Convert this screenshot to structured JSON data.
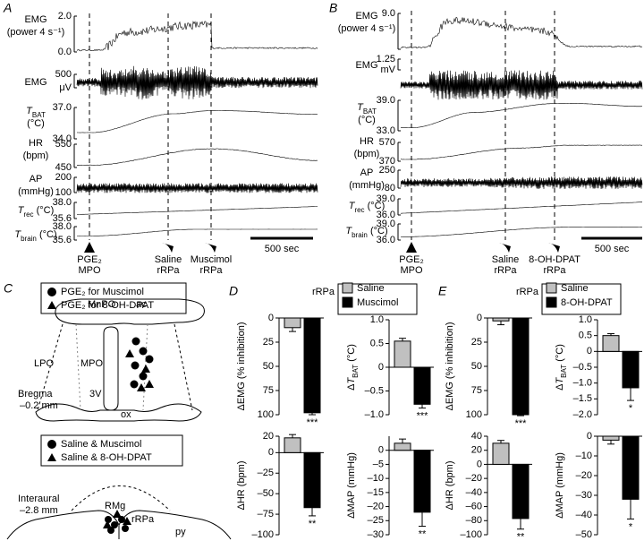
{
  "panel_a": {
    "label": "A",
    "rows": [
      {
        "name": [
          "EMG",
          "(power 4 s⁻¹)"
        ],
        "scale": [
          "2.0",
          "0.0"
        ]
      },
      {
        "name": [
          "EMG"
        ],
        "scale": [
          "500",
          "μV"
        ]
      },
      {
        "name": [
          {
            "sym": "T",
            "sub": "BAT"
          },
          "(°C)"
        ],
        "scale": [
          "37.0",
          "34.0"
        ]
      },
      {
        "name": [
          "HR",
          "(bpm)"
        ],
        "scale": [
          "550",
          "450"
        ]
      },
      {
        "name": [
          "AP",
          "(mmHg)"
        ],
        "scale": [
          "200",
          "100"
        ]
      },
      {
        "name": [
          {
            "sym": "T",
            "sub": "rec",
            "post": " (°C)"
          }
        ],
        "scale": [
          "38.0",
          "35.6"
        ]
      },
      {
        "name": [
          {
            "sym": "T",
            "sub": "brain",
            "post": " (°C)"
          }
        ],
        "scale": [
          "38.0",
          "35.6"
        ]
      }
    ],
    "events": [
      [
        "PGE₂",
        "MPO"
      ],
      [
        "Saline",
        "rRPa"
      ],
      [
        "Muscimol",
        "rRPa"
      ]
    ],
    "scale_bar": "500 sec"
  },
  "panel_b": {
    "label": "B",
    "rows": [
      {
        "name": [
          "EMG",
          "(power 4 s⁻¹)"
        ],
        "scale": [
          "9.0"
        ]
      },
      {
        "name": [
          "EMG"
        ],
        "scale": [
          "1.25",
          "mV"
        ]
      },
      {
        "name": [
          {
            "sym": "T",
            "sub": "BAT"
          },
          "(°C)"
        ],
        "scale": [
          "39.0",
          "33.0"
        ]
      },
      {
        "name": [
          "HR",
          "(bpm)"
        ],
        "scale": [
          "570",
          "370"
        ]
      },
      {
        "name": [
          "AP",
          "(mmHg)"
        ],
        "scale": [
          "250",
          "80"
        ]
      },
      {
        "name": [
          {
            "sym": "T",
            "sub": "rec",
            "post": " (°C)"
          }
        ],
        "scale": [
          "39.0",
          "36.0"
        ]
      },
      {
        "name": [
          {
            "sym": "T",
            "sub": "brain",
            "post": " (°C)"
          }
        ],
        "scale": [
          "39.0",
          "36.0"
        ]
      }
    ],
    "events": [
      [
        "PGE₂",
        "MPO"
      ],
      [
        "Saline",
        "rRPa"
      ],
      [
        "8-OH-DPAT",
        "rRPa"
      ]
    ],
    "scale_bar": "500 sec"
  },
  "panel_c": {
    "label": "C",
    "legend_top": [
      "PGE₂ for Muscimol",
      "PGE₂ for 8-OH-DPAT"
    ],
    "section_top": {
      "labels": [
        "MnPO",
        "ac",
        "LPO",
        "MPO",
        "3V",
        "ox"
      ],
      "level": [
        "Bregma",
        "–0.2 mm"
      ]
    },
    "legend_bottom": [
      "Saline & Muscimol",
      "Saline & 8-OH-DPAT"
    ],
    "section_bottom": {
      "labels": [
        "RMg",
        "rRPa",
        "py"
      ],
      "level": [
        "Interaural",
        "–2.8 mm"
      ]
    }
  },
  "chart_data": [
    {
      "type": "bar",
      "label": "D",
      "legend_title": "rRPa",
      "series": [
        {
          "name": "Saline",
          "color": "#c0c0c0"
        },
        {
          "name": "Muscimol",
          "color": "#000000"
        }
      ],
      "subplots": [
        {
          "ylabel": "ΔEMG (% inhibition)",
          "values": [
            10,
            98
          ],
          "errors": [
            4,
            2
          ],
          "ylim": [
            100,
            0
          ],
          "yticks": [
            0,
            25,
            50,
            75,
            100
          ],
          "significance": "***"
        },
        {
          "ylabel": {
            "pre": "Δ",
            "sym": "T",
            "sub": "BAT",
            "post": " (°C)"
          },
          "values": [
            0.55,
            -0.78
          ],
          "errors": [
            0.06,
            0.08
          ],
          "ylim": [
            -1,
            1
          ],
          "yticks": [
            {
              "value": 1,
              "label": "1.0"
            },
            {
              "value": 0.5,
              "label": "0.5"
            },
            0,
            {
              "value": -0.5,
              "label": "–0.5"
            },
            {
              "value": -1,
              "label": "–1.0"
            }
          ],
          "significance": "***"
        },
        {
          "ylabel": "ΔHR (bpm)",
          "values": [
            18,
            -67
          ],
          "errors": [
            4,
            10
          ],
          "ylim": [
            -100,
            20
          ],
          "yticks": [
            20,
            0,
            {
              "value": -25,
              "label": "–25"
            },
            {
              "value": -50,
              "label": "–50"
            },
            {
              "value": -75,
              "label": "–75"
            },
            {
              "value": -100,
              "label": "–100"
            }
          ],
          "significance": "**"
        },
        {
          "ylabel": "ΔMAP (mmHg)",
          "values": [
            2.5,
            -22
          ],
          "errors": [
            1.5,
            5
          ],
          "ylim": [
            -30,
            5
          ],
          "yticks": [
            0,
            {
              "value": -5,
              "label": "–5"
            },
            {
              "value": -10,
              "label": "–10"
            },
            {
              "value": -15,
              "label": "–15"
            },
            {
              "value": -20,
              "label": "–20"
            },
            {
              "value": -25,
              "label": "–25"
            },
            {
              "value": -30,
              "label": "–30"
            }
          ],
          "significance": "**"
        }
      ]
    },
    {
      "type": "bar",
      "label": "E",
      "legend_title": "rRPa",
      "series": [
        {
          "name": "Saline",
          "color": "#c0c0c0"
        },
        {
          "name": "8-OH-DPAT",
          "color": "#000000"
        }
      ],
      "subplots": [
        {
          "ylabel": "ΔEMG (% inhibition)",
          "values": [
            3,
            100
          ],
          "errors": [
            4,
            1
          ],
          "ylim": [
            100,
            0
          ],
          "yticks": [
            0,
            25,
            50,
            75,
            100
          ],
          "significance": "***"
        },
        {
          "ylabel": {
            "pre": "Δ",
            "sym": "T",
            "sub": "BAT",
            "post": " (°C)"
          },
          "values": [
            0.5,
            -1.15
          ],
          "errors": [
            0.06,
            0.4
          ],
          "ylim": [
            -2,
            1
          ],
          "yticks": [
            {
              "value": 1,
              "label": "1.0"
            },
            {
              "value": 0.5,
              "label": "0.5"
            },
            0,
            {
              "value": -0.5,
              "label": "–0.5"
            },
            {
              "value": -1,
              "label": "–1.0"
            },
            {
              "value": -1.5,
              "label": "–1.5"
            },
            {
              "value": -2,
              "label": "–2.0"
            }
          ],
          "significance": "*"
        },
        {
          "ylabel": "ΔHR (bpm)",
          "values": [
            30,
            -77
          ],
          "errors": [
            4,
            15
          ],
          "ylim": [
            -100,
            40
          ],
          "yticks": [
            40,
            20,
            0,
            {
              "value": -20,
              "label": "–20"
            },
            {
              "value": -40,
              "label": "–40"
            },
            {
              "value": -60,
              "label": "–60"
            },
            {
              "value": -80,
              "label": "–80"
            },
            {
              "value": -100,
              "label": "–100"
            }
          ],
          "significance": "**"
        },
        {
          "ylabel": "ΔMAP (mmHg)",
          "values": [
            -2,
            -32
          ],
          "errors": [
            2,
            10
          ],
          "ylim": [
            -50,
            0
          ],
          "yticks": [
            0,
            {
              "value": -10,
              "label": "–10"
            },
            {
              "value": -20,
              "label": "–20"
            },
            {
              "value": -30,
              "label": "–30"
            },
            {
              "value": -40,
              "label": "–40"
            },
            {
              "value": -50,
              "label": "–50"
            }
          ],
          "significance": "*"
        }
      ]
    }
  ]
}
